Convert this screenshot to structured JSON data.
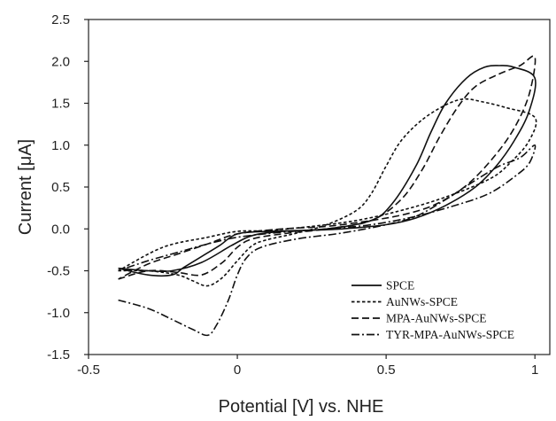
{
  "chart_data": {
    "type": "line",
    "title": "",
    "xlabel": "Potential [V] vs. NHE",
    "ylabel": "Current [μA]",
    "xlim": [
      -0.5,
      1.05
    ],
    "ylim": [
      -1.5,
      2.5
    ],
    "xticks": [
      -0.5,
      0,
      0.5,
      1
    ],
    "xtick_labels": [
      "-0.5",
      "0",
      "0.5",
      "1"
    ],
    "yticks": [
      -1.5,
      -1.0,
      -0.5,
      0.0,
      0.5,
      1.0,
      1.5,
      2.0,
      2.5
    ],
    "ytick_labels": [
      "-1.5",
      "-1.0",
      "-0.5",
      "0.0",
      "0.5",
      "1.0",
      "1.5",
      "2.0",
      "2.5"
    ],
    "grid": false,
    "legend_position": "bottom-right",
    "series": [
      {
        "name": "SPCE",
        "line_style": "solid",
        "points": [
          [
            -0.4,
            -0.47
          ],
          [
            -0.3,
            -0.5
          ],
          [
            -0.22,
            -0.5
          ],
          [
            -0.12,
            -0.4
          ],
          [
            -0.02,
            -0.2
          ],
          [
            0.05,
            -0.08
          ],
          [
            0.15,
            -0.03
          ],
          [
            0.3,
            0.0
          ],
          [
            0.45,
            0.1
          ],
          [
            0.52,
            0.3
          ],
          [
            0.6,
            0.75
          ],
          [
            0.65,
            1.15
          ],
          [
            0.7,
            1.5
          ],
          [
            0.77,
            1.8
          ],
          [
            0.83,
            1.93
          ],
          [
            0.88,
            1.95
          ],
          [
            0.93,
            1.93
          ],
          [
            1.0,
            1.8
          ],
          [
            0.98,
            1.4
          ],
          [
            0.93,
            1.05
          ],
          [
            0.87,
            0.75
          ],
          [
            0.8,
            0.5
          ],
          [
            0.7,
            0.28
          ],
          [
            0.6,
            0.13
          ],
          [
            0.5,
            0.05
          ],
          [
            0.35,
            0.0
          ],
          [
            0.2,
            -0.02
          ],
          [
            0.1,
            -0.03
          ],
          [
            0.0,
            -0.06
          ],
          [
            -0.06,
            -0.2
          ],
          [
            -0.12,
            -0.33
          ],
          [
            -0.18,
            -0.46
          ],
          [
            -0.22,
            -0.55
          ],
          [
            -0.3,
            -0.55
          ],
          [
            -0.4,
            -0.47
          ]
        ]
      },
      {
        "name": "AuNWs-SPCE",
        "line_style": "dotted",
        "points": [
          [
            -0.4,
            -0.5
          ],
          [
            -0.3,
            -0.5
          ],
          [
            -0.2,
            -0.55
          ],
          [
            -0.15,
            -0.62
          ],
          [
            -0.1,
            -0.68
          ],
          [
            -0.05,
            -0.58
          ],
          [
            0.0,
            -0.38
          ],
          [
            0.05,
            -0.2
          ],
          [
            0.1,
            -0.13
          ],
          [
            0.2,
            -0.05
          ],
          [
            0.3,
            0.05
          ],
          [
            0.4,
            0.22
          ],
          [
            0.45,
            0.42
          ],
          [
            0.5,
            0.75
          ],
          [
            0.55,
            1.05
          ],
          [
            0.62,
            1.3
          ],
          [
            0.7,
            1.48
          ],
          [
            0.76,
            1.55
          ],
          [
            0.82,
            1.52
          ],
          [
            0.9,
            1.45
          ],
          [
            1.0,
            1.33
          ],
          [
            0.98,
            1.05
          ],
          [
            0.92,
            0.8
          ],
          [
            0.85,
            0.6
          ],
          [
            0.7,
            0.38
          ],
          [
            0.55,
            0.22
          ],
          [
            0.4,
            0.1
          ],
          [
            0.25,
            0.03
          ],
          [
            0.1,
            -0.02
          ],
          [
            0.0,
            -0.03
          ],
          [
            -0.1,
            -0.1
          ],
          [
            -0.25,
            -0.22
          ],
          [
            -0.4,
            -0.5
          ]
        ]
      },
      {
        "name": "MPA-AuNWs-SPCE",
        "line_style": "dashed",
        "points": [
          [
            -0.4,
            -0.6
          ],
          [
            -0.3,
            -0.5
          ],
          [
            -0.2,
            -0.52
          ],
          [
            -0.12,
            -0.55
          ],
          [
            -0.05,
            -0.4
          ],
          [
            0.0,
            -0.22
          ],
          [
            0.05,
            -0.12
          ],
          [
            0.15,
            -0.06
          ],
          [
            0.3,
            0.0
          ],
          [
            0.45,
            0.1
          ],
          [
            0.55,
            0.35
          ],
          [
            0.62,
            0.7
          ],
          [
            0.68,
            1.1
          ],
          [
            0.74,
            1.45
          ],
          [
            0.8,
            1.7
          ],
          [
            0.88,
            1.85
          ],
          [
            0.95,
            1.95
          ],
          [
            1.0,
            2.05
          ],
          [
            0.98,
            1.6
          ],
          [
            0.93,
            1.2
          ],
          [
            0.86,
            0.85
          ],
          [
            0.77,
            0.52
          ],
          [
            0.67,
            0.3
          ],
          [
            0.57,
            0.18
          ],
          [
            0.45,
            0.1
          ],
          [
            0.3,
            0.03
          ],
          [
            0.15,
            0.0
          ],
          [
            0.0,
            -0.06
          ],
          [
            -0.1,
            -0.18
          ],
          [
            -0.2,
            -0.3
          ],
          [
            -0.3,
            -0.42
          ],
          [
            -0.4,
            -0.6
          ]
        ]
      },
      {
        "name": "TYR-MPA-AuNWs-SPCE",
        "line_style": "dash-dot",
        "points": [
          [
            -0.4,
            -0.85
          ],
          [
            -0.3,
            -0.95
          ],
          [
            -0.22,
            -1.08
          ],
          [
            -0.15,
            -1.2
          ],
          [
            -0.1,
            -1.27
          ],
          [
            -0.07,
            -1.15
          ],
          [
            -0.03,
            -0.85
          ],
          [
            0.0,
            -0.55
          ],
          [
            0.03,
            -0.35
          ],
          [
            0.08,
            -0.22
          ],
          [
            0.2,
            -0.12
          ],
          [
            0.35,
            -0.05
          ],
          [
            0.5,
            0.05
          ],
          [
            0.6,
            0.15
          ],
          [
            0.7,
            0.35
          ],
          [
            0.8,
            0.58
          ],
          [
            0.88,
            0.75
          ],
          [
            0.95,
            0.85
          ],
          [
            1.0,
            1.0
          ],
          [
            0.98,
            0.78
          ],
          [
            0.93,
            0.62
          ],
          [
            0.85,
            0.43
          ],
          [
            0.75,
            0.3
          ],
          [
            0.6,
            0.15
          ],
          [
            0.45,
            0.05
          ],
          [
            0.3,
            0.0
          ],
          [
            0.15,
            -0.04
          ],
          [
            0.0,
            -0.1
          ],
          [
            -0.1,
            -0.18
          ],
          [
            -0.2,
            -0.28
          ],
          [
            -0.3,
            -0.38
          ],
          [
            -0.4,
            -0.5
          ]
        ]
      }
    ]
  }
}
